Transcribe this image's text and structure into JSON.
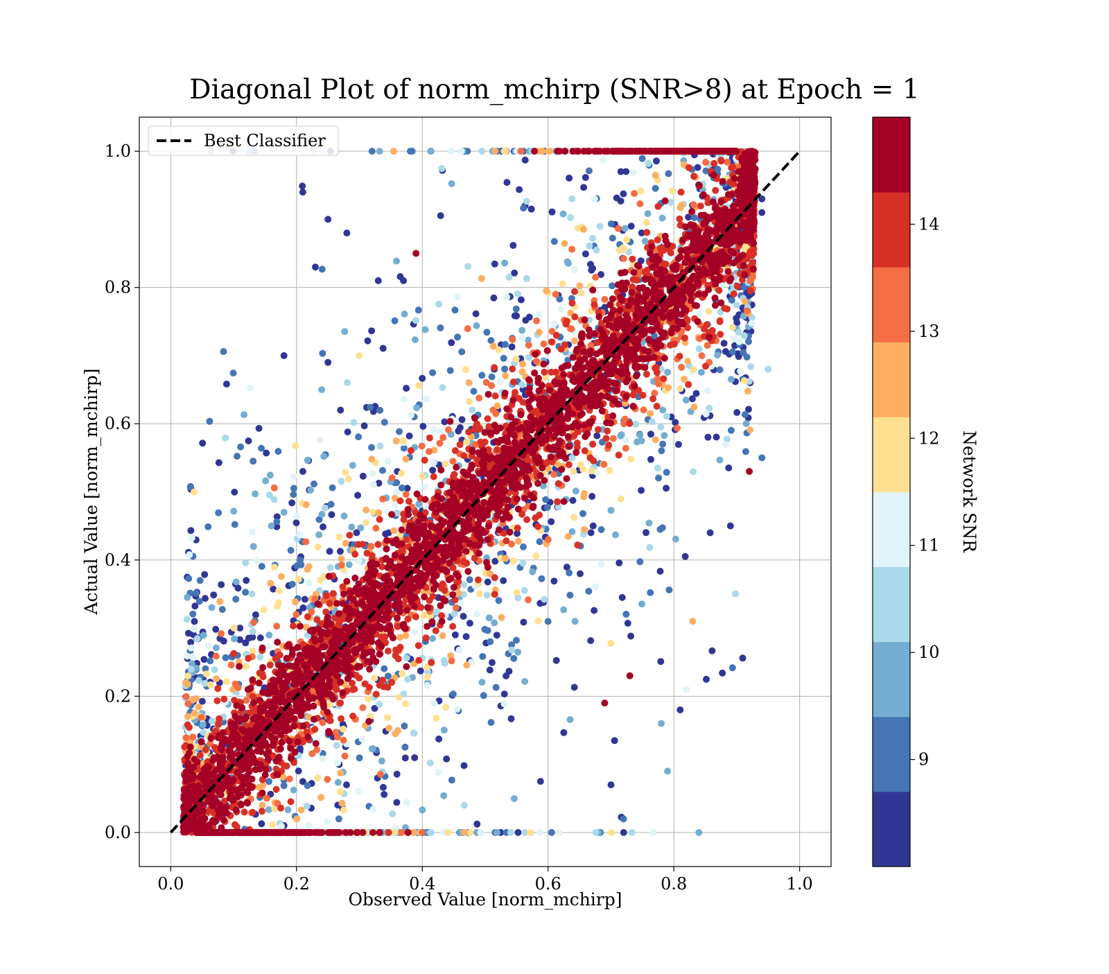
{
  "chart_data": {
    "type": "scatter",
    "title": "Diagonal Plot of norm_mchirp (SNR>8) at Epoch = 1",
    "xlabel": "Observed Value [norm_mchirp]",
    "ylabel": "Actual Value [norm_mchirp]",
    "xlim": [
      -0.05,
      1.05
    ],
    "ylim": [
      -0.05,
      1.05
    ],
    "xticks": [
      "0.0",
      "0.2",
      "0.4",
      "0.6",
      "0.8",
      "1.0"
    ],
    "yticks": [
      "0.0",
      "0.2",
      "0.4",
      "0.6",
      "0.8",
      "1.0"
    ],
    "grid": true,
    "legend": {
      "position": "top-left",
      "entries": [
        "Best Classifier"
      ]
    },
    "reference_line": {
      "name": "Best Classifier",
      "x": [
        0,
        1
      ],
      "y": [
        0,
        1
      ],
      "style": "dashed",
      "color": "#000000"
    },
    "colorbar": {
      "label": "Network SNR",
      "range": [
        8,
        15
      ],
      "ticks": [
        "9",
        "10",
        "11",
        "12",
        "13",
        "14"
      ],
      "colors": [
        "#313695",
        "#4575b4",
        "#74add1",
        "#abd9e9",
        "#e0f3f8",
        "#fee090",
        "#fdae61",
        "#f46d43",
        "#d73027",
        "#a50026"
      ]
    },
    "points": {
      "description_of_distribution": "dense band along diagonal; high-SNR (dark red) points concentrated near y=x, lower-SNR points more scattered",
      "x_range": [
        0.02,
        0.95
      ],
      "y_range": [
        0.0,
        1.0
      ],
      "sample": [
        [
          0.21,
          0.94,
          8.3
        ],
        [
          0.25,
          0.9,
          8.3
        ],
        [
          0.28,
          0.88,
          8.3
        ],
        [
          0.23,
          0.83,
          8.3
        ],
        [
          0.18,
          0.7,
          8.3
        ],
        [
          0.25,
          0.69,
          8.3
        ],
        [
          0.21,
          0.53,
          8.3
        ],
        [
          0.33,
          0.81,
          8.3
        ],
        [
          0.37,
          0.81,
          8.3
        ],
        [
          0.39,
          0.85,
          14.5
        ],
        [
          0.95,
          0.68,
          10.5
        ],
        [
          0.94,
          0.93,
          8.5
        ],
        [
          0.94,
          0.91,
          8.3
        ],
        [
          0.81,
          0.18,
          8.3
        ],
        [
          0.79,
          0.09,
          9.5
        ],
        [
          0.69,
          0.19,
          14.5
        ],
        [
          0.73,
          0.23,
          14.5
        ],
        [
          0.72,
          0.02,
          9.0
        ],
        [
          0.7,
          0.07,
          8.5
        ],
        [
          0.78,
          0.16,
          9.5
        ],
        [
          0.82,
          0.21,
          11.0
        ],
        [
          0.83,
          0.31,
          12.5
        ],
        [
          0.89,
          0.45,
          8.3
        ],
        [
          0.92,
          0.53,
          14.5
        ],
        [
          0.94,
          0.55,
          9.0
        ],
        [
          0.16,
          0.45,
          9.5
        ],
        [
          0.18,
          0.47,
          9.5
        ],
        [
          0.12,
          0.37,
          8.3
        ],
        [
          0.11,
          0.3,
          8.3
        ],
        [
          0.3,
          0.7,
          11.5
        ],
        [
          0.27,
          0.62,
          8.3
        ],
        [
          0.24,
          0.65,
          9.5
        ]
      ]
    }
  }
}
